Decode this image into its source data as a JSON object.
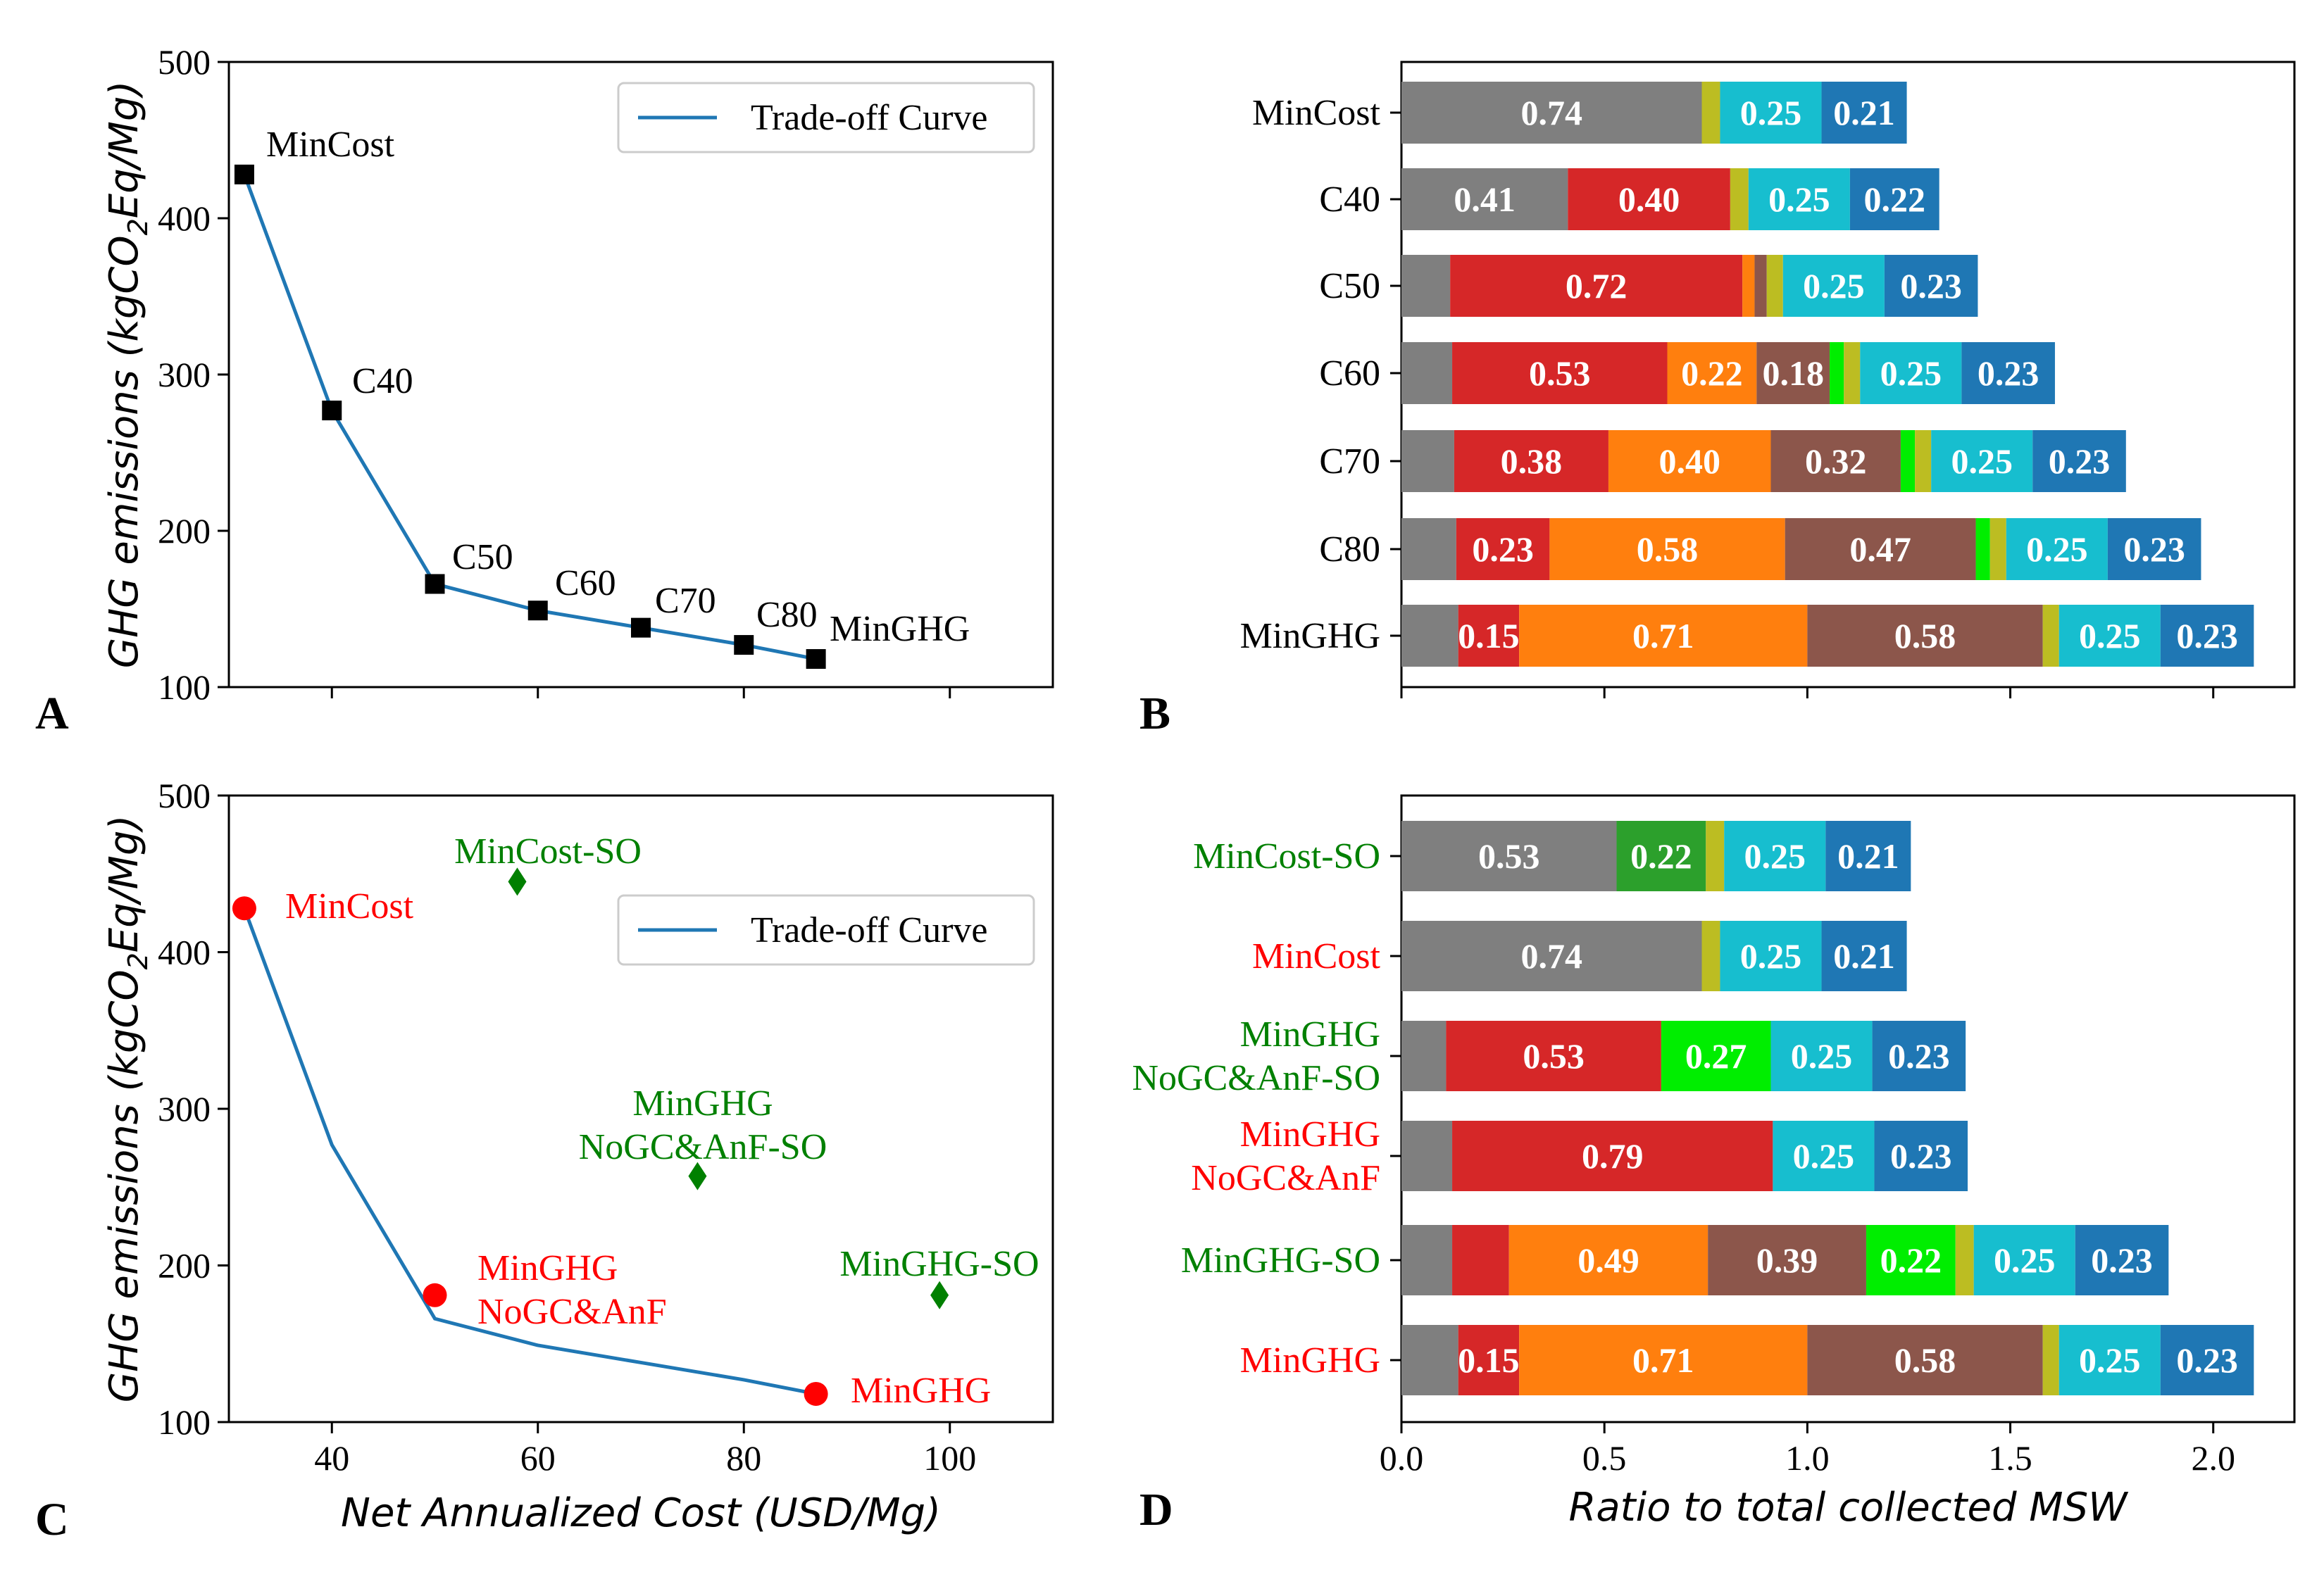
{
  "panel_labels": [
    "A",
    "B",
    "C",
    "D"
  ],
  "colors": {
    "gray": "#7f7f7f",
    "red": "#d62728",
    "orange": "#ff7f0e",
    "brown": "#8c564b",
    "lime": "#00ee00",
    "green": "#2ca02c",
    "olive": "#bcbd22",
    "cyan": "#17becf",
    "blue": "#1f77b4",
    "curve": "#1f77b4",
    "label_green": "#008000",
    "label_red": "#ff0000"
  },
  "legend_label": "Trade-off Curve",
  "tradeoff_curve": {
    "x": [
      31.5,
      40,
      50,
      60,
      70,
      80,
      87
    ],
    "y": [
      428,
      277,
      166,
      149,
      138,
      127,
      118
    ]
  },
  "chart_data": [
    {
      "id": "A",
      "type": "line",
      "xlabel": "",
      "ylabel": "GHG emissions (kgCO2Eq/Mg)",
      "xlim": [
        30,
        110
      ],
      "ylim": [
        100,
        500
      ],
      "xticks": [
        40,
        60,
        80,
        100
      ],
      "yticks": [
        100,
        200,
        300,
        400,
        500
      ],
      "show_xticklabels": false,
      "legend": "top-right",
      "points": [
        {
          "label": "MinCost",
          "x": 31.5,
          "y": 428
        },
        {
          "label": "C40",
          "x": 40,
          "y": 277
        },
        {
          "label": "C50",
          "x": 50,
          "y": 166
        },
        {
          "label": "C60",
          "x": 60,
          "y": 149
        },
        {
          "label": "C70",
          "x": 70,
          "y": 138
        },
        {
          "label": "C80",
          "x": 80,
          "y": 127
        },
        {
          "label": "MinGHG",
          "x": 87,
          "y": 118
        }
      ]
    },
    {
      "id": "B",
      "type": "bar",
      "orientation": "horizontal",
      "stacked": true,
      "xlim": [
        0,
        2.2
      ],
      "show_xticklabels": false,
      "categories": [
        "MinCost",
        "C40",
        "C50",
        "C60",
        "C70",
        "C80",
        "MinGHG"
      ],
      "rows": [
        {
          "label": "MinCost",
          "label_color": "#000000",
          "segments": [
            {
              "c": "gray",
              "v": 0.74,
              "t": "0.74"
            },
            {
              "c": "olive",
              "v": 0.045
            },
            {
              "c": "cyan",
              "v": 0.25,
              "t": "0.25"
            },
            {
              "c": "blue",
              "v": 0.21,
              "t": "0.21"
            }
          ]
        },
        {
          "label": "C40",
          "label_color": "#000000",
          "segments": [
            {
              "c": "gray",
              "v": 0.41,
              "t": "0.41"
            },
            {
              "c": "red",
              "v": 0.4,
              "t": "0.40"
            },
            {
              "c": "olive",
              "v": 0.045
            },
            {
              "c": "cyan",
              "v": 0.25,
              "t": "0.25"
            },
            {
              "c": "blue",
              "v": 0.22,
              "t": "0.22"
            }
          ]
        },
        {
          "label": "C50",
          "label_color": "#000000",
          "segments": [
            {
              "c": "gray",
              "v": 0.12
            },
            {
              "c": "red",
              "v": 0.72,
              "t": "0.72"
            },
            {
              "c": "orange",
              "v": 0.03
            },
            {
              "c": "brown",
              "v": 0.03
            },
            {
              "c": "olive",
              "v": 0.04
            },
            {
              "c": "cyan",
              "v": 0.25,
              "t": "0.25"
            },
            {
              "c": "blue",
              "v": 0.23,
              "t": "0.23"
            }
          ]
        },
        {
          "label": "C60",
          "label_color": "#000000",
          "segments": [
            {
              "c": "gray",
              "v": 0.125
            },
            {
              "c": "red",
              "v": 0.53,
              "t": "0.53"
            },
            {
              "c": "orange",
              "v": 0.22,
              "t": "0.22"
            },
            {
              "c": "brown",
              "v": 0.18,
              "t": "0.18"
            },
            {
              "c": "lime",
              "v": 0.035
            },
            {
              "c": "olive",
              "v": 0.04
            },
            {
              "c": "cyan",
              "v": 0.25,
              "t": "0.25"
            },
            {
              "c": "blue",
              "v": 0.23,
              "t": "0.23"
            }
          ]
        },
        {
          "label": "C70",
          "label_color": "#000000",
          "segments": [
            {
              "c": "gray",
              "v": 0.13
            },
            {
              "c": "red",
              "v": 0.38,
              "t": "0.38"
            },
            {
              "c": "orange",
              "v": 0.4,
              "t": "0.40"
            },
            {
              "c": "brown",
              "v": 0.32,
              "t": "0.32"
            },
            {
              "c": "lime",
              "v": 0.035
            },
            {
              "c": "olive",
              "v": 0.04
            },
            {
              "c": "cyan",
              "v": 0.25,
              "t": "0.25"
            },
            {
              "c": "blue",
              "v": 0.23,
              "t": "0.23"
            }
          ]
        },
        {
          "label": "C80",
          "label_color": "#000000",
          "segments": [
            {
              "c": "gray",
              "v": 0.135
            },
            {
              "c": "red",
              "v": 0.23,
              "t": "0.23"
            },
            {
              "c": "orange",
              "v": 0.58,
              "t": "0.58"
            },
            {
              "c": "brown",
              "v": 0.47,
              "t": "0.47"
            },
            {
              "c": "lime",
              "v": 0.035
            },
            {
              "c": "olive",
              "v": 0.04
            },
            {
              "c": "cyan",
              "v": 0.25,
              "t": "0.25"
            },
            {
              "c": "blue",
              "v": 0.23,
              "t": "0.23"
            }
          ]
        },
        {
          "label": "MinGHG",
          "label_color": "#000000",
          "segments": [
            {
              "c": "gray",
              "v": 0.14
            },
            {
              "c": "red",
              "v": 0.15,
              "t": "0.15"
            },
            {
              "c": "orange",
              "v": 0.71,
              "t": "0.71"
            },
            {
              "c": "brown",
              "v": 0.58,
              "t": "0.58"
            },
            {
              "c": "olive",
              "v": 0.04
            },
            {
              "c": "cyan",
              "v": 0.25,
              "t": "0.25"
            },
            {
              "c": "blue",
              "v": 0.23,
              "t": "0.23"
            }
          ]
        }
      ]
    },
    {
      "id": "C",
      "type": "scatter",
      "xlabel": "Net Annualized Cost (USD/Mg)",
      "ylabel": "GHG emissions (kgCO2Eq/Mg)",
      "xlim": [
        30,
        110
      ],
      "ylim": [
        100,
        500
      ],
      "xticks": [
        40,
        60,
        80,
        100
      ],
      "yticks": [
        100,
        200,
        300,
        400,
        500
      ],
      "legend": "top-right",
      "points": [
        {
          "label": "MinCost",
          "x": 31.5,
          "y": 428,
          "marker": "circle",
          "color": "label_red"
        },
        {
          "label": "MinGHG\nNoGC&AnF",
          "x": 50,
          "y": 181,
          "marker": "circle",
          "color": "label_red"
        },
        {
          "label": "MinGHG",
          "x": 87,
          "y": 118,
          "marker": "circle",
          "color": "label_red"
        },
        {
          "label": "MinCost-SO",
          "x": 58,
          "y": 445,
          "marker": "diamond",
          "color": "label_green"
        },
        {
          "label": "MinGHG\nNoGC&AnF-SO",
          "x": 75.5,
          "y": 257,
          "marker": "diamond",
          "color": "label_green"
        },
        {
          "label": "MinGHG-SO",
          "x": 99,
          "y": 181,
          "marker": "diamond",
          "color": "label_green"
        }
      ]
    },
    {
      "id": "D",
      "type": "bar",
      "orientation": "horizontal",
      "stacked": true,
      "xlabel": "Ratio to total collected MSW",
      "xlim": [
        0,
        2.2
      ],
      "xticks": [
        0.0,
        0.5,
        1.0,
        1.5,
        2.0
      ],
      "xticklabels": [
        "0.0",
        "0.5",
        "1.0",
        "1.5",
        "2.0"
      ],
      "categories": [
        "MinCost-SO",
        "MinCost",
        "MinGHG NoGC&AnF-SO",
        "MinGHG NoGC&AnF",
        "MinGHG-SO",
        "MinGHG"
      ],
      "rows": [
        {
          "label": "MinCost-SO",
          "label_color": "#008000",
          "segments": [
            {
              "c": "gray",
              "v": 0.53,
              "t": "0.53"
            },
            {
              "c": "green",
              "v": 0.22,
              "t": "0.22"
            },
            {
              "c": "olive",
              "v": 0.045
            },
            {
              "c": "cyan",
              "v": 0.25,
              "t": "0.25"
            },
            {
              "c": "blue",
              "v": 0.21,
              "t": "0.21"
            }
          ]
        },
        {
          "label": "MinCost",
          "label_color": "#ff0000",
          "segments": [
            {
              "c": "gray",
              "v": 0.74,
              "t": "0.74"
            },
            {
              "c": "olive",
              "v": 0.045
            },
            {
              "c": "cyan",
              "v": 0.25,
              "t": "0.25"
            },
            {
              "c": "blue",
              "v": 0.21,
              "t": "0.21"
            }
          ]
        },
        {
          "label": "MinGHG\nNoGC&AnF-SO",
          "label_color": "#008000",
          "segments": [
            {
              "c": "gray",
              "v": 0.11
            },
            {
              "c": "red",
              "v": 0.53,
              "t": "0.53"
            },
            {
              "c": "lime",
              "v": 0.27,
              "t": "0.27"
            },
            {
              "c": "cyan",
              "v": 0.25,
              "t": "0.25"
            },
            {
              "c": "blue",
              "v": 0.23,
              "t": "0.23"
            }
          ]
        },
        {
          "label": "MinGHG\nNoGC&AnF",
          "label_color": "#ff0000",
          "segments": [
            {
              "c": "gray",
              "v": 0.125
            },
            {
              "c": "red",
              "v": 0.79,
              "t": "0.79"
            },
            {
              "c": "cyan",
              "v": 0.25,
              "t": "0.25"
            },
            {
              "c": "blue",
              "v": 0.23,
              "t": "0.23"
            }
          ]
        },
        {
          "label": "MinGHG-SO",
          "label_color": "#008000",
          "segments": [
            {
              "c": "gray",
              "v": 0.125
            },
            {
              "c": "red",
              "v": 0.14
            },
            {
              "c": "orange",
              "v": 0.49,
              "t": "0.49"
            },
            {
              "c": "brown",
              "v": 0.39,
              "t": "0.39"
            },
            {
              "c": "lime",
              "v": 0.22,
              "t": "0.22"
            },
            {
              "c": "olive",
              "v": 0.045
            },
            {
              "c": "cyan",
              "v": 0.25,
              "t": "0.25"
            },
            {
              "c": "blue",
              "v": 0.23,
              "t": "0.23"
            }
          ]
        },
        {
          "label": "MinGHG",
          "label_color": "#ff0000",
          "segments": [
            {
              "c": "gray",
              "v": 0.14
            },
            {
              "c": "red",
              "v": 0.15,
              "t": "0.15"
            },
            {
              "c": "orange",
              "v": 0.71,
              "t": "0.71"
            },
            {
              "c": "brown",
              "v": 0.58,
              "t": "0.58"
            },
            {
              "c": "olive",
              "v": 0.04
            },
            {
              "c": "cyan",
              "v": 0.25,
              "t": "0.25"
            },
            {
              "c": "blue",
              "v": 0.23,
              "t": "0.23"
            }
          ]
        }
      ]
    }
  ]
}
